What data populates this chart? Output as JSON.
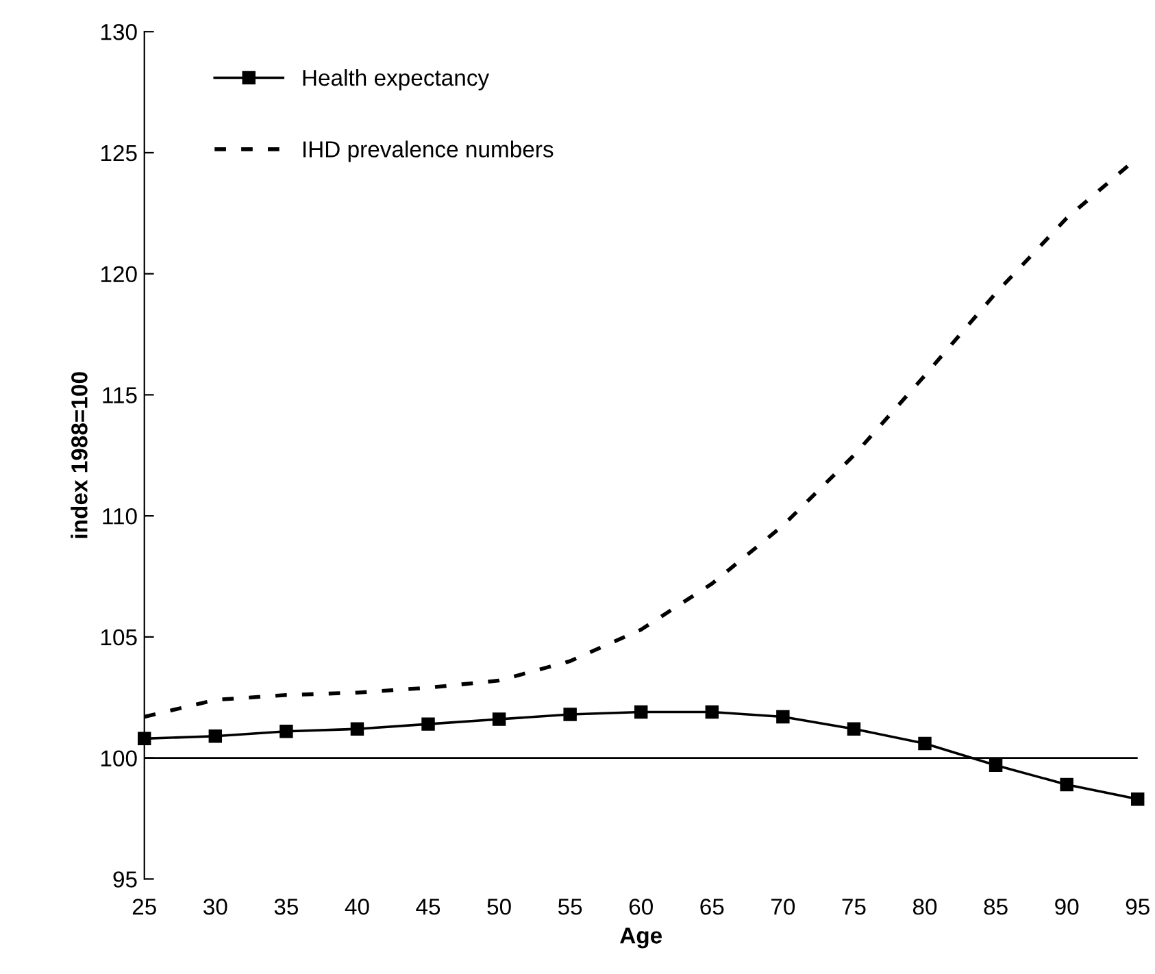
{
  "chart_data": {
    "type": "line",
    "xlabel": "Age",
    "ylabel": "index 1988=100",
    "x": [
      25,
      30,
      35,
      40,
      45,
      50,
      55,
      60,
      65,
      70,
      75,
      80,
      85,
      90,
      95
    ],
    "series": [
      {
        "name": "Health expectancy",
        "color": "#000000",
        "marker": "square",
        "line_style": "solid",
        "values": [
          100.8,
          100.9,
          101.1,
          101.2,
          101.4,
          101.6,
          101.8,
          101.9,
          101.9,
          101.7,
          101.2,
          100.6,
          99.7,
          98.9,
          98.3
        ]
      },
      {
        "name": "IHD prevalence numbers",
        "color": "#000000",
        "marker": "none",
        "line_style": "dashed",
        "values": [
          101.7,
          102.4,
          102.6,
          102.7,
          102.9,
          103.2,
          104.0,
          105.3,
          107.2,
          109.6,
          112.5,
          115.8,
          119.2,
          122.3,
          124.8
        ]
      }
    ],
    "xlim": [
      25,
      95
    ],
    "xticks": [
      25,
      30,
      35,
      40,
      45,
      50,
      55,
      60,
      65,
      70,
      75,
      80,
      85,
      90,
      95
    ],
    "ylim": [
      95,
      130
    ],
    "yticks": [
      95,
      100,
      105,
      110,
      115,
      120,
      125,
      130
    ],
    "ref_lines": [
      {
        "axis": "y",
        "value": 100,
        "color": "#000000"
      }
    ],
    "grid": false,
    "legend": "top left"
  }
}
